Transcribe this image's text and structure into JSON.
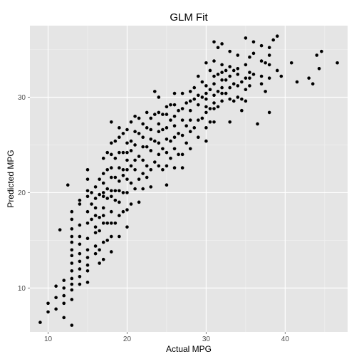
{
  "chart_data": {
    "type": "scatter",
    "title": "GLM Fit",
    "xlabel": "Actual MPG",
    "ylabel": "Predicted MPG",
    "xlim": [
      7.7,
      47.9
    ],
    "ylim": [
      5.4,
      37.5
    ],
    "x_ticks": [
      10,
      20,
      30,
      40
    ],
    "y_ticks": [
      10,
      20,
      30
    ],
    "grid": true,
    "panel_color": "#e5e5e5",
    "grid_color": "#ffffff",
    "point_color": "#000000",
    "points": [
      [
        9.0,
        6.4
      ],
      [
        10.0,
        7.5
      ],
      [
        10.0,
        8.4
      ],
      [
        11.0,
        7.8
      ],
      [
        11.0,
        9.0
      ],
      [
        11.0,
        10.2
      ],
      [
        11.5,
        16.1
      ],
      [
        12.0,
        6.9
      ],
      [
        12.0,
        8.4
      ],
      [
        12.0,
        9.2
      ],
      [
        12.0,
        10.0
      ],
      [
        12.0,
        10.8
      ],
      [
        13.0,
        6.1
      ],
      [
        13.0,
        8.8
      ],
      [
        13.0,
        9.8
      ],
      [
        13.0,
        10.4
      ],
      [
        13.0,
        11.0
      ],
      [
        13.0,
        11.8
      ],
      [
        13.0,
        12.6
      ],
      [
        13.0,
        13.4
      ],
      [
        13.0,
        14.0
      ],
      [
        13.0,
        14.8
      ],
      [
        13.0,
        15.4
      ],
      [
        13.0,
        16.2
      ],
      [
        13.0,
        17.2
      ],
      [
        13.0,
        18.0
      ],
      [
        12.5,
        20.8
      ],
      [
        14.0,
        10.4
      ],
      [
        14.0,
        11.2
      ],
      [
        14.0,
        12.0
      ],
      [
        14.0,
        12.8
      ],
      [
        14.0,
        13.6
      ],
      [
        14.0,
        14.6
      ],
      [
        14.0,
        15.4
      ],
      [
        14.0,
        16.6
      ],
      [
        14.0,
        18.8
      ],
      [
        14.0,
        19.2
      ],
      [
        15.0,
        10.6
      ],
      [
        15.0,
        11.8
      ],
      [
        15.0,
        12.4
      ],
      [
        15.0,
        13.2
      ],
      [
        15.0,
        14.0
      ],
      [
        15.0,
        15.2
      ],
      [
        15.0,
        16.8
      ],
      [
        15.0,
        18.0
      ],
      [
        15.0,
        19.6
      ],
      [
        15.0,
        20.2
      ],
      [
        15.0,
        21.4
      ],
      [
        15.0,
        22.4
      ],
      [
        15.5,
        17.2
      ],
      [
        15.5,
        18.8
      ],
      [
        15.5,
        20.0
      ],
      [
        16.0,
        13.6
      ],
      [
        16.0,
        14.4
      ],
      [
        16.0,
        15.8
      ],
      [
        16.0,
        16.4
      ],
      [
        16.0,
        17.6
      ],
      [
        16.0,
        18.4
      ],
      [
        16.0,
        19.4
      ],
      [
        16.0,
        20.6
      ],
      [
        16.5,
        12.6
      ],
      [
        16.5,
        14.0
      ],
      [
        16.5,
        16.0
      ],
      [
        16.5,
        17.4
      ],
      [
        16.5,
        19.8
      ],
      [
        16.5,
        21.4
      ],
      [
        17.0,
        13.0
      ],
      [
        17.0,
        14.8
      ],
      [
        17.0,
        16.8
      ],
      [
        17.0,
        17.6
      ],
      [
        17.0,
        18.4
      ],
      [
        17.0,
        19.6
      ],
      [
        17.0,
        20.0
      ],
      [
        17.0,
        21.0
      ],
      [
        17.0,
        22.0
      ],
      [
        17.0,
        23.6
      ],
      [
        17.5,
        15.0
      ],
      [
        17.5,
        16.8
      ],
      [
        17.5,
        19.4
      ],
      [
        17.5,
        20.4
      ],
      [
        17.5,
        22.4
      ],
      [
        17.5,
        24.2
      ],
      [
        18.0,
        13.8
      ],
      [
        18.0,
        15.4
      ],
      [
        18.0,
        16.8
      ],
      [
        18.0,
        18.0
      ],
      [
        18.0,
        19.6
      ],
      [
        18.0,
        20.2
      ],
      [
        18.0,
        21.6
      ],
      [
        18.0,
        22.6
      ],
      [
        18.0,
        24.0
      ],
      [
        18.0,
        25.2
      ],
      [
        18.0,
        27.4
      ],
      [
        18.5,
        16.8
      ],
      [
        18.5,
        19.2
      ],
      [
        18.5,
        20.2
      ],
      [
        18.5,
        21.6
      ],
      [
        18.5,
        23.6
      ],
      [
        18.5,
        25.4
      ],
      [
        19.0,
        15.4
      ],
      [
        19.0,
        17.6
      ],
      [
        19.0,
        19.0
      ],
      [
        19.0,
        20.2
      ],
      [
        19.0,
        21.2
      ],
      [
        19.0,
        22.6
      ],
      [
        19.0,
        24.2
      ],
      [
        19.0,
        25.8
      ],
      [
        19.0,
        26.8
      ],
      [
        19.5,
        18.0
      ],
      [
        19.5,
        20.0
      ],
      [
        19.5,
        21.8
      ],
      [
        19.5,
        22.4
      ],
      [
        19.5,
        24.2
      ],
      [
        19.5,
        26.2
      ],
      [
        20.0,
        16.4
      ],
      [
        20.0,
        18.2
      ],
      [
        20.0,
        20.0
      ],
      [
        20.0,
        21.4
      ],
      [
        20.0,
        22.4
      ],
      [
        20.0,
        23.4
      ],
      [
        20.0,
        24.2
      ],
      [
        20.0,
        25.2
      ],
      [
        20.0,
        26.6
      ],
      [
        20.5,
        18.8
      ],
      [
        20.5,
        21.0
      ],
      [
        20.5,
        22.8
      ],
      [
        20.5,
        24.4
      ],
      [
        20.5,
        25.4
      ],
      [
        20.5,
        27.4
      ],
      [
        21.0,
        20.4
      ],
      [
        21.0,
        22.4
      ],
      [
        21.0,
        23.4
      ],
      [
        21.0,
        25.0
      ],
      [
        21.0,
        26.4
      ],
      [
        21.0,
        28.0
      ],
      [
        21.5,
        19.0
      ],
      [
        21.5,
        21.4
      ],
      [
        21.5,
        23.8
      ],
      [
        21.5,
        26.2
      ],
      [
        21.5,
        27.8
      ],
      [
        22.0,
        20.4
      ],
      [
        22.0,
        22.0
      ],
      [
        22.0,
        23.4
      ],
      [
        22.0,
        24.8
      ],
      [
        22.0,
        25.8
      ],
      [
        22.0,
        27.2
      ],
      [
        22.5,
        21.6
      ],
      [
        22.5,
        22.8
      ],
      [
        22.5,
        24.8
      ],
      [
        22.5,
        26.8
      ],
      [
        22.5,
        28.4
      ],
      [
        23.0,
        20.6
      ],
      [
        23.0,
        22.4
      ],
      [
        23.0,
        24.4
      ],
      [
        23.0,
        25.6
      ],
      [
        23.0,
        26.6
      ],
      [
        23.0,
        27.8
      ],
      [
        23.5,
        23.2
      ],
      [
        23.5,
        25.4
      ],
      [
        23.5,
        28.2
      ],
      [
        23.5,
        30.6
      ],
      [
        24.0,
        22.8
      ],
      [
        24.0,
        24.0
      ],
      [
        24.0,
        25.2
      ],
      [
        24.0,
        26.4
      ],
      [
        24.0,
        27.2
      ],
      [
        24.0,
        28.4
      ],
      [
        24.0,
        30.0
      ],
      [
        24.5,
        22.4
      ],
      [
        24.5,
        24.6
      ],
      [
        24.5,
        26.6
      ],
      [
        24.5,
        28.2
      ],
      [
        25.0,
        20.8
      ],
      [
        25.0,
        22.8
      ],
      [
        25.0,
        24.2
      ],
      [
        25.0,
        25.6
      ],
      [
        25.0,
        26.8
      ],
      [
        25.0,
        28.2
      ],
      [
        25.0,
        29.0
      ],
      [
        25.5,
        23.6
      ],
      [
        25.5,
        25.4
      ],
      [
        25.5,
        27.6
      ],
      [
        25.5,
        29.2
      ],
      [
        26.0,
        22.6
      ],
      [
        26.0,
        24.6
      ],
      [
        26.0,
        25.8
      ],
      [
        26.0,
        27.0
      ],
      [
        26.0,
        28.0
      ],
      [
        26.0,
        29.2
      ],
      [
        26.0,
        30.4
      ],
      [
        26.5,
        24.0
      ],
      [
        26.5,
        26.2
      ],
      [
        26.5,
        28.6
      ],
      [
        27.0,
        22.6
      ],
      [
        27.0,
        24.0
      ],
      [
        27.0,
        26.0
      ],
      [
        27.0,
        27.6
      ],
      [
        27.0,
        28.8
      ],
      [
        27.0,
        30.4
      ],
      [
        27.5,
        25.2
      ],
      [
        27.5,
        27.0
      ],
      [
        27.5,
        29.4
      ],
      [
        28.0,
        24.6
      ],
      [
        28.0,
        26.4
      ],
      [
        28.0,
        27.6
      ],
      [
        28.0,
        28.6
      ],
      [
        28.0,
        29.6
      ],
      [
        28.0,
        30.6
      ],
      [
        28.5,
        26.8
      ],
      [
        28.5,
        29.8
      ],
      [
        28.5,
        31.0
      ],
      [
        29.0,
        25.8
      ],
      [
        29.0,
        27.6
      ],
      [
        29.0,
        29.2
      ],
      [
        29.0,
        30.2
      ],
      [
        29.0,
        32.2
      ],
      [
        29.5,
        27.8
      ],
      [
        29.5,
        30.0
      ],
      [
        29.5,
        31.6
      ],
      [
        30.0,
        25.4
      ],
      [
        30.0,
        26.8
      ],
      [
        30.0,
        28.4
      ],
      [
        30.0,
        29.0
      ],
      [
        30.0,
        29.8
      ],
      [
        30.0,
        30.4
      ],
      [
        30.0,
        31.2
      ],
      [
        30.0,
        33.6
      ],
      [
        30.5,
        27.4
      ],
      [
        30.5,
        28.8
      ],
      [
        30.5,
        30.8
      ],
      [
        30.5,
        32.8
      ],
      [
        31.0,
        27.4
      ],
      [
        31.0,
        28.8
      ],
      [
        31.0,
        29.4
      ],
      [
        31.0,
        30.2
      ],
      [
        31.0,
        31.4
      ],
      [
        31.0,
        32.2
      ],
      [
        31.0,
        33.8
      ],
      [
        31.0,
        35.8
      ],
      [
        31.5,
        29.0
      ],
      [
        31.5,
        30.6
      ],
      [
        31.5,
        32.4
      ],
      [
        31.5,
        35.2
      ],
      [
        32.0,
        29.6
      ],
      [
        32.0,
        30.4
      ],
      [
        32.0,
        31.0
      ],
      [
        32.0,
        31.8
      ],
      [
        32.0,
        32.6
      ],
      [
        32.0,
        33.4
      ],
      [
        32.0,
        35.6
      ],
      [
        32.5,
        30.4
      ],
      [
        32.5,
        31.8
      ],
      [
        32.5,
        32.8
      ],
      [
        33.0,
        27.4
      ],
      [
        33.0,
        29.8
      ],
      [
        33.0,
        31.0
      ],
      [
        33.0,
        32.2
      ],
      [
        33.0,
        33.2
      ],
      [
        33.0,
        34.8
      ],
      [
        33.5,
        29.6
      ],
      [
        33.5,
        31.4
      ],
      [
        33.5,
        32.8
      ],
      [
        34.0,
        30.0
      ],
      [
        34.0,
        31.2
      ],
      [
        34.0,
        32.4
      ],
      [
        34.0,
        33.0
      ],
      [
        34.0,
        34.4
      ],
      [
        34.5,
        28.6
      ],
      [
        34.5,
        29.8
      ],
      [
        34.5,
        31.6
      ],
      [
        35.0,
        29.6
      ],
      [
        35.0,
        30.8
      ],
      [
        35.0,
        32.0
      ],
      [
        35.0,
        33.4
      ],
      [
        35.0,
        36.2
      ],
      [
        35.5,
        31.2
      ],
      [
        35.5,
        32.0
      ],
      [
        35.5,
        32.6
      ],
      [
        35.5,
        34.2
      ],
      [
        36.0,
        32.4
      ],
      [
        36.0,
        34.6
      ],
      [
        36.0,
        35.8
      ],
      [
        36.5,
        27.2
      ],
      [
        37.0,
        31.4
      ],
      [
        37.0,
        32.2
      ],
      [
        37.0,
        33.8
      ],
      [
        37.0,
        35.4
      ],
      [
        37.5,
        30.6
      ],
      [
        37.5,
        33.6
      ],
      [
        38.0,
        28.4
      ],
      [
        38.0,
        32.0
      ],
      [
        38.0,
        33.4
      ],
      [
        38.0,
        34.4
      ],
      [
        38.0,
        35.2
      ],
      [
        38.5,
        36.0
      ],
      [
        39.0,
        32.8
      ],
      [
        39.0,
        36.4
      ],
      [
        39.5,
        32.2
      ],
      [
        40.8,
        33.6
      ],
      [
        41.5,
        31.6
      ],
      [
        43.0,
        32.0
      ],
      [
        43.5,
        31.4
      ],
      [
        44.0,
        34.4
      ],
      [
        44.3,
        33.0
      ],
      [
        44.6,
        34.8
      ],
      [
        46.6,
        33.6
      ]
    ]
  }
}
